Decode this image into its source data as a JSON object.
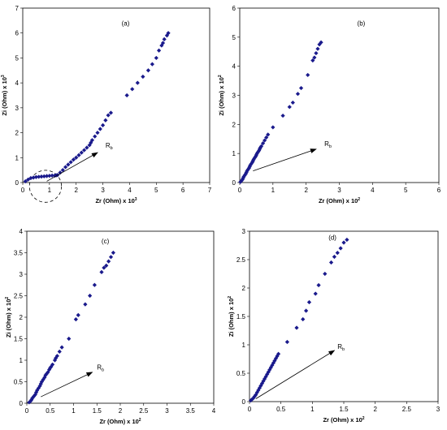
{
  "chart_data": [
    {
      "type": "scatter",
      "panel_label": "(a)",
      "xlabel": "Zr (Ohm) x 10",
      "xlabel_exp": "3",
      "ylabel": "Zi (Ohm) x 10",
      "ylabel_exp": "3",
      "xlim": [
        0,
        7
      ],
      "ylim": [
        0,
        7
      ],
      "xticks": [
        "0",
        "1",
        "2",
        "3",
        "4",
        "5",
        "6",
        "7"
      ],
      "yticks": [
        "0",
        "1",
        "2",
        "3",
        "4",
        "5",
        "6",
        "7"
      ],
      "grid": false,
      "marker_color": "#1a1a8c",
      "annotation": {
        "text": "R",
        "sub": "b",
        "arrow_from": [
          0.9,
          0.05
        ],
        "arrow_to": [
          2.8,
          1.2
        ],
        "text_pos": [
          3.1,
          1.4
        ]
      },
      "circle_marker": {
        "cx": 0.85,
        "cy": -0.15,
        "r": 0.6,
        "style": "dashed"
      },
      "points": [
        [
          0.1,
          0.05
        ],
        [
          0.2,
          0.12
        ],
        [
          0.3,
          0.18
        ],
        [
          0.4,
          0.2
        ],
        [
          0.5,
          0.22
        ],
        [
          0.6,
          0.23
        ],
        [
          0.7,
          0.24
        ],
        [
          0.8,
          0.25
        ],
        [
          0.9,
          0.26
        ],
        [
          1.0,
          0.27
        ],
        [
          1.1,
          0.28
        ],
        [
          1.2,
          0.28
        ],
        [
          1.25,
          0.29
        ],
        [
          1.3,
          0.3
        ],
        [
          1.4,
          0.4
        ],
        [
          1.5,
          0.5
        ],
        [
          1.6,
          0.62
        ],
        [
          1.7,
          0.72
        ],
        [
          1.8,
          0.82
        ],
        [
          1.9,
          0.92
        ],
        [
          2.0,
          1.0
        ],
        [
          2.1,
          1.1
        ],
        [
          2.2,
          1.2
        ],
        [
          2.3,
          1.3
        ],
        [
          2.4,
          1.4
        ],
        [
          2.5,
          1.5
        ],
        [
          2.55,
          1.6
        ],
        [
          2.6,
          1.7
        ],
        [
          2.7,
          1.85
        ],
        [
          2.8,
          2.0
        ],
        [
          2.9,
          2.15
        ],
        [
          3.0,
          2.3
        ],
        [
          3.1,
          2.5
        ],
        [
          3.2,
          2.7
        ],
        [
          3.3,
          2.8
        ],
        [
          3.9,
          3.5
        ],
        [
          4.1,
          3.75
        ],
        [
          4.3,
          4.0
        ],
        [
          4.5,
          4.25
        ],
        [
          4.7,
          4.5
        ],
        [
          4.85,
          4.75
        ],
        [
          5.0,
          5.0
        ],
        [
          5.1,
          5.3
        ],
        [
          5.2,
          5.5
        ],
        [
          5.25,
          5.6
        ],
        [
          5.3,
          5.75
        ],
        [
          5.4,
          5.9
        ],
        [
          5.45,
          6.0
        ]
      ]
    },
    {
      "type": "scatter",
      "panel_label": "(b)",
      "xlabel": "Zr (Ohm) x 10",
      "xlabel_exp": "2",
      "ylabel": "Zi (Ohm) x 10",
      "ylabel_exp": "2",
      "xlim": [
        0,
        6
      ],
      "ylim": [
        0,
        6
      ],
      "xticks": [
        "0",
        "1",
        "2",
        "3",
        "4",
        "5",
        "6"
      ],
      "yticks": [
        "0",
        "1",
        "2",
        "3",
        "4",
        "5",
        "6"
      ],
      "grid": false,
      "marker_color": "#1a1a8c",
      "annotation": {
        "text": "R",
        "sub": "b",
        "arrow_from": [
          0.4,
          0.4
        ],
        "arrow_to": [
          2.3,
          1.15
        ],
        "text_pos": [
          2.55,
          1.25
        ]
      },
      "points": [
        [
          0.02,
          0.02
        ],
        [
          0.05,
          0.06
        ],
        [
          0.08,
          0.1
        ],
        [
          0.1,
          0.15
        ],
        [
          0.12,
          0.2
        ],
        [
          0.15,
          0.25
        ],
        [
          0.18,
          0.3
        ],
        [
          0.2,
          0.35
        ],
        [
          0.22,
          0.4
        ],
        [
          0.25,
          0.45
        ],
        [
          0.28,
          0.5
        ],
        [
          0.3,
          0.55
        ],
        [
          0.32,
          0.6
        ],
        [
          0.35,
          0.65
        ],
        [
          0.38,
          0.7
        ],
        [
          0.4,
          0.75
        ],
        [
          0.42,
          0.8
        ],
        [
          0.45,
          0.85
        ],
        [
          0.48,
          0.9
        ],
        [
          0.5,
          0.95
        ],
        [
          0.52,
          1.0
        ],
        [
          0.55,
          1.05
        ],
        [
          0.58,
          1.1
        ],
        [
          0.6,
          1.15
        ],
        [
          0.62,
          1.2
        ],
        [
          0.65,
          1.25
        ],
        [
          0.7,
          1.35
        ],
        [
          0.75,
          1.45
        ],
        [
          0.8,
          1.55
        ],
        [
          0.85,
          1.65
        ],
        [
          1.0,
          1.9
        ],
        [
          1.3,
          2.3
        ],
        [
          1.5,
          2.6
        ],
        [
          1.6,
          2.75
        ],
        [
          1.75,
          3.05
        ],
        [
          1.85,
          3.25
        ],
        [
          2.05,
          3.7
        ],
        [
          2.2,
          4.2
        ],
        [
          2.25,
          4.3
        ],
        [
          2.3,
          4.45
        ],
        [
          2.35,
          4.6
        ],
        [
          2.4,
          4.75
        ],
        [
          2.45,
          4.82
        ]
      ]
    },
    {
      "type": "scatter",
      "panel_label": "(c)",
      "xlabel": "Zr (Ohm) x 10",
      "xlabel_exp": "2",
      "ylabel": "Zi (Ohm) x 10",
      "ylabel_exp": "2",
      "xlim": [
        0,
        4
      ],
      "ylim": [
        0,
        4
      ],
      "xticks": [
        "0",
        "0.5",
        "1",
        "1.5",
        "2",
        "2.5",
        "3",
        "3.5",
        "4"
      ],
      "yticks": [
        "0",
        "0.5",
        "1",
        "1.5",
        "2",
        "2.5",
        "3",
        "3.5",
        "4"
      ],
      "grid": false,
      "marker_color": "#1a1a8c",
      "annotation": {
        "text": "R",
        "sub": "b",
        "arrow_from": [
          0.3,
          0.15
        ],
        "arrow_to": [
          1.4,
          0.72
        ],
        "text_pos": [
          1.5,
          0.78
        ]
      },
      "points": [
        [
          0.05,
          0.02
        ],
        [
          0.08,
          0.05
        ],
        [
          0.1,
          0.08
        ],
        [
          0.12,
          0.12
        ],
        [
          0.15,
          0.16
        ],
        [
          0.18,
          0.2
        ],
        [
          0.2,
          0.25
        ],
        [
          0.22,
          0.3
        ],
        [
          0.25,
          0.35
        ],
        [
          0.28,
          0.4
        ],
        [
          0.3,
          0.45
        ],
        [
          0.32,
          0.5
        ],
        [
          0.35,
          0.55
        ],
        [
          0.38,
          0.6
        ],
        [
          0.4,
          0.65
        ],
        [
          0.42,
          0.68
        ],
        [
          0.45,
          0.72
        ],
        [
          0.48,
          0.78
        ],
        [
          0.5,
          0.82
        ],
        [
          0.52,
          0.85
        ],
        [
          0.55,
          0.9
        ],
        [
          0.6,
          1.0
        ],
        [
          0.62,
          1.05
        ],
        [
          0.65,
          1.1
        ],
        [
          0.7,
          1.2
        ],
        [
          0.75,
          1.3
        ],
        [
          0.9,
          1.5
        ],
        [
          1.05,
          1.95
        ],
        [
          1.1,
          2.05
        ],
        [
          1.25,
          2.3
        ],
        [
          1.35,
          2.5
        ],
        [
          1.45,
          2.75
        ],
        [
          1.6,
          3.05
        ],
        [
          1.65,
          3.15
        ],
        [
          1.7,
          3.2
        ],
        [
          1.75,
          3.3
        ],
        [
          1.8,
          3.4
        ],
        [
          1.85,
          3.5
        ]
      ]
    },
    {
      "type": "scatter",
      "panel_label": "(d)",
      "xlabel": "Zr (Ohm) x 10",
      "xlabel_exp": "2",
      "ylabel": "Zi (Ohm) x 10",
      "ylabel_exp": "2",
      "xlim": [
        0,
        3
      ],
      "ylim": [
        0,
        3
      ],
      "xticks": [
        "0",
        "0.5",
        "1",
        "1.5",
        "2",
        "2.5",
        "3"
      ],
      "yticks": [
        "0",
        "0.5",
        "1",
        "1.5",
        "2",
        "2.5",
        "3"
      ],
      "grid": false,
      "marker_color": "#1a1a8c",
      "annotation": {
        "text": "R",
        "sub": "b",
        "arrow_from": [
          0.1,
          0.05
        ],
        "arrow_to": [
          1.35,
          0.9
        ],
        "text_pos": [
          1.4,
          0.93
        ]
      },
      "points": [
        [
          0.02,
          0.02
        ],
        [
          0.04,
          0.04
        ],
        [
          0.06,
          0.06
        ],
        [
          0.08,
          0.09
        ],
        [
          0.1,
          0.12
        ],
        [
          0.12,
          0.16
        ],
        [
          0.14,
          0.2
        ],
        [
          0.16,
          0.24
        ],
        [
          0.18,
          0.28
        ],
        [
          0.2,
          0.32
        ],
        [
          0.22,
          0.36
        ],
        [
          0.24,
          0.4
        ],
        [
          0.26,
          0.44
        ],
        [
          0.28,
          0.48
        ],
        [
          0.3,
          0.52
        ],
        [
          0.32,
          0.56
        ],
        [
          0.34,
          0.6
        ],
        [
          0.36,
          0.64
        ],
        [
          0.38,
          0.68
        ],
        [
          0.4,
          0.72
        ],
        [
          0.42,
          0.76
        ],
        [
          0.44,
          0.8
        ],
        [
          0.46,
          0.84
        ],
        [
          0.6,
          1.05
        ],
        [
          0.75,
          1.3
        ],
        [
          0.85,
          1.45
        ],
        [
          0.9,
          1.6
        ],
        [
          0.95,
          1.75
        ],
        [
          1.05,
          1.9
        ],
        [
          1.1,
          2.05
        ],
        [
          1.2,
          2.25
        ],
        [
          1.3,
          2.45
        ],
        [
          1.35,
          2.55
        ],
        [
          1.4,
          2.62
        ],
        [
          1.45,
          2.7
        ],
        [
          1.5,
          2.8
        ],
        [
          1.55,
          2.85
        ]
      ]
    }
  ]
}
